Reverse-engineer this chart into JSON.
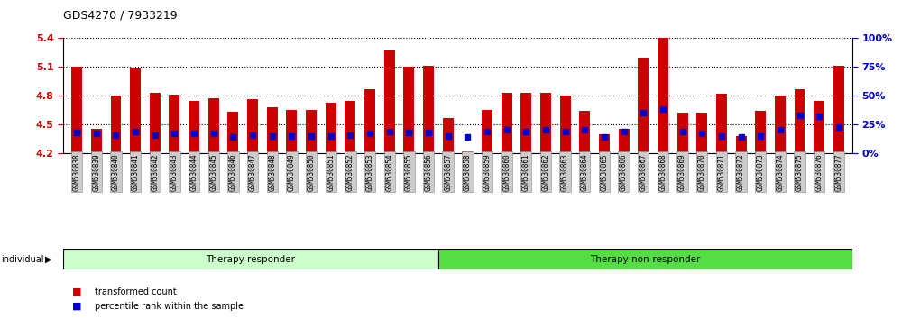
{
  "title": "GDS4270 / 7933219",
  "samples": [
    "GSM530838",
    "GSM530839",
    "GSM530840",
    "GSM530841",
    "GSM530842",
    "GSM530843",
    "GSM530844",
    "GSM530845",
    "GSM530846",
    "GSM530847",
    "GSM530848",
    "GSM530849",
    "GSM530850",
    "GSM530851",
    "GSM530852",
    "GSM530853",
    "GSM530854",
    "GSM530855",
    "GSM530856",
    "GSM530857",
    "GSM530858",
    "GSM530859",
    "GSM530860",
    "GSM530861",
    "GSM530862",
    "GSM530863",
    "GSM530864",
    "GSM530865",
    "GSM530866",
    "GSM530867",
    "GSM530868",
    "GSM530869",
    "GSM530870",
    "GSM530871",
    "GSM530872",
    "GSM530873",
    "GSM530874",
    "GSM530875",
    "GSM530876",
    "GSM530877"
  ],
  "bar_values": [
    5.1,
    4.45,
    4.8,
    5.08,
    4.83,
    4.81,
    4.75,
    4.77,
    4.63,
    4.76,
    4.68,
    4.65,
    4.65,
    4.73,
    4.75,
    4.87,
    5.27,
    5.1,
    5.11,
    4.57,
    4.22,
    4.65,
    4.83,
    4.83,
    4.83,
    4.8,
    4.64,
    4.4,
    4.45,
    5.2,
    5.4,
    4.62,
    4.62,
    4.82,
    4.38,
    4.64,
    4.8,
    4.87,
    4.75,
    5.11
  ],
  "percentile_pct": [
    18,
    17,
    16,
    19,
    16,
    17,
    17,
    17,
    14,
    16,
    15,
    15,
    15,
    15,
    16,
    17,
    19,
    18,
    18,
    15,
    14,
    19,
    20,
    19,
    20,
    19,
    20,
    14,
    19,
    35,
    38,
    19,
    17,
    15,
    14,
    15,
    20,
    33,
    32,
    23
  ],
  "group_labels": [
    "Therapy responder",
    "Therapy non-responder"
  ],
  "group_counts": [
    19,
    21
  ],
  "ylim": [
    4.2,
    5.4
  ],
  "yticks_left": [
    4.2,
    4.5,
    4.8,
    5.1,
    5.4
  ],
  "yticks_right": [
    0,
    25,
    50,
    75,
    100
  ],
  "bar_color": "#cc0000",
  "percentile_color": "#0000cc",
  "bg_color_responder": "#ccffcc",
  "bg_color_nonresponder": "#55dd44",
  "left_axis_color": "#cc0000",
  "right_axis_color": "#0000cc",
  "legend_text1": "transformed count",
  "legend_text2": "percentile rank within the sample",
  "individual_label": "individual"
}
